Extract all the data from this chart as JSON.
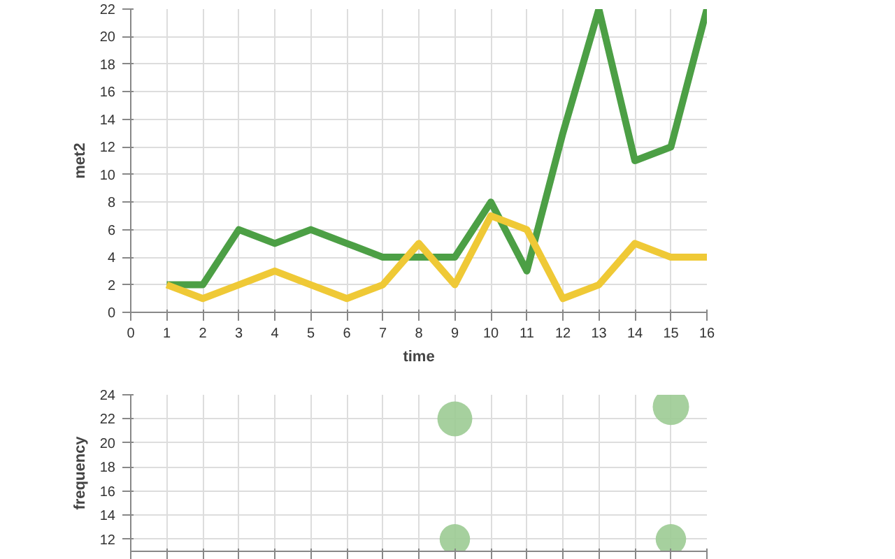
{
  "chart_data": [
    {
      "type": "line",
      "xlabel": "time",
      "ylabel": "met2",
      "x": [
        1,
        2,
        3,
        4,
        5,
        6,
        7,
        8,
        9,
        10,
        11,
        12,
        13,
        14,
        15,
        16
      ],
      "series": [
        {
          "color": "#4c9f45",
          "values": [
            2,
            2,
            6,
            5,
            6,
            5,
            4,
            4,
            4,
            8,
            3,
            13,
            22,
            11,
            12,
            22
          ]
        },
        {
          "color": "#efc936",
          "values": [
            2,
            1,
            2,
            3,
            2,
            1,
            2,
            5,
            2,
            7,
            6,
            1,
            2,
            5,
            4,
            4
          ]
        }
      ],
      "xlim": [
        0,
        16
      ],
      "xticks": [
        0,
        1,
        2,
        3,
        4,
        5,
        6,
        7,
        8,
        9,
        10,
        11,
        12,
        13,
        14,
        15,
        16
      ],
      "ylim": [
        0,
        22
      ],
      "yticks": [
        0,
        2,
        4,
        6,
        8,
        10,
        12,
        14,
        16,
        18,
        20,
        22
      ],
      "grid": true,
      "marker": "none",
      "line_style": "solid"
    },
    {
      "type": "bubble",
      "ylabel": "frequency",
      "x": [
        9,
        15,
        9,
        15
      ],
      "values": [
        22,
        23,
        12,
        12
      ],
      "sizes": [
        0.92,
        1,
        0.7,
        0.7
      ],
      "color": "#9ccb93",
      "xlim": [
        0,
        16
      ],
      "xticks": [
        {
          "value": 0,
          "label": null
        },
        {
          "value": 1,
          "label": null
        },
        {
          "value": 2,
          "label": null
        },
        {
          "value": 3,
          "label": null
        },
        {
          "value": 4,
          "label": null
        },
        {
          "value": 5,
          "label": null
        },
        {
          "value": 6,
          "label": null
        },
        {
          "value": 7,
          "label": null
        },
        {
          "value": 8,
          "label": null
        },
        {
          "value": 9,
          "label": null
        },
        {
          "value": 10,
          "label": null
        },
        {
          "value": 11,
          "label": null
        },
        {
          "value": 12,
          "label": null
        },
        {
          "value": 13,
          "label": null
        },
        {
          "value": 14,
          "label": null
        },
        {
          "value": 15,
          "label": null
        },
        {
          "value": 16,
          "label": null
        }
      ],
      "ylim": [
        11,
        24
      ],
      "yticks": [
        12,
        14,
        16,
        18,
        20,
        22,
        24
      ],
      "grid": true,
      "tick_labels": "y"
    }
  ]
}
